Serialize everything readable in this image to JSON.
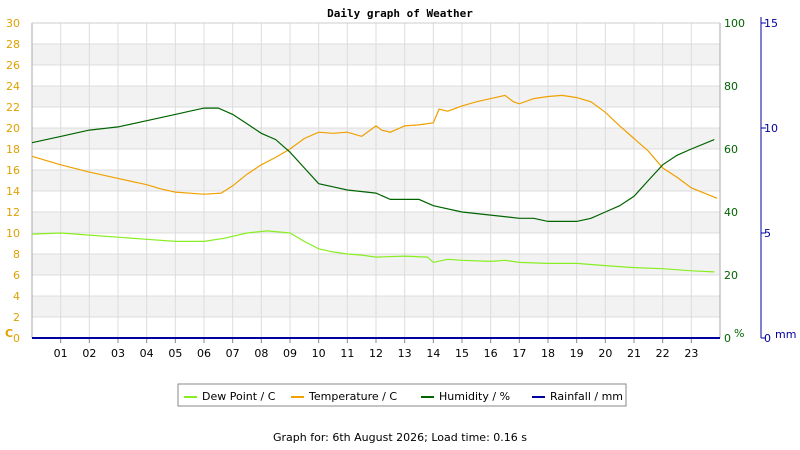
{
  "chart_data": {
    "type": "line",
    "title": "Daily graph of Weather",
    "footer": "Graph for: 6th August 2026; Load time: 0.16 s",
    "x_ticks": [
      "01",
      "02",
      "03",
      "04",
      "05",
      "06",
      "07",
      "08",
      "09",
      "10",
      "11",
      "12",
      "13",
      "14",
      "15",
      "16",
      "17",
      "18",
      "19",
      "20",
      "21",
      "22",
      "23"
    ],
    "xlim": [
      0,
      24
    ],
    "grid": true,
    "legend_position": "bottom",
    "axes": {
      "left": {
        "unit": "C",
        "ticks": [
          "0",
          "2",
          "4",
          "6",
          "8",
          "10",
          "12",
          "14",
          "16",
          "18",
          "20",
          "22",
          "24",
          "26",
          "28",
          "30"
        ],
        "min": 0,
        "max": 30,
        "color": "#e0a000"
      },
      "right1": {
        "unit": "%",
        "ticks": [
          "0",
          "20",
          "40",
          "60",
          "80",
          "100"
        ],
        "min": 0,
        "max": 100,
        "color": "#006400"
      },
      "right2": {
        "unit": "mm",
        "ticks": [
          "0",
          "5",
          "10",
          "15"
        ],
        "min": 0,
        "max": 15,
        "color": "#0000a0"
      }
    },
    "series": [
      {
        "name": "Dew Point / C",
        "axis": "left",
        "color": "#88ee22",
        "x": [
          0,
          1,
          2,
          3,
          4,
          5,
          6,
          6.7,
          7.5,
          8.2,
          9,
          9.5,
          10,
          10.5,
          11,
          11.5,
          12,
          13,
          13.8,
          14,
          14.5,
          15,
          16,
          16.5,
          17,
          18,
          19,
          20,
          21,
          22,
          23,
          23.8
        ],
        "y": [
          9.9,
          10,
          9.8,
          9.6,
          9.4,
          9.2,
          9.2,
          9.5,
          10,
          10.2,
          10,
          9.2,
          8.5,
          8.2,
          8,
          7.9,
          7.7,
          7.8,
          7.7,
          7.2,
          7.5,
          7.4,
          7.3,
          7.4,
          7.2,
          7.1,
          7.1,
          6.9,
          6.7,
          6.6,
          6.4,
          6.3
        ]
      },
      {
        "name": "Temperature / C",
        "axis": "left",
        "color": "#f0a000",
        "x": [
          0,
          1,
          2,
          3,
          4,
          4.5,
          5,
          6,
          6.6,
          7,
          7.5,
          8,
          8.5,
          9,
          9.5,
          10,
          10.5,
          11,
          11.5,
          12,
          12.2,
          12.5,
          13,
          13.5,
          14,
          14.2,
          14.5,
          15,
          15.5,
          16,
          16.5,
          16.8,
          17,
          17.5,
          18,
          18.5,
          19,
          19.5,
          20,
          20.5,
          21,
          21.5,
          22,
          22.5,
          23,
          23.9
        ],
        "y": [
          17.3,
          16.5,
          15.8,
          15.2,
          14.6,
          14.2,
          13.9,
          13.7,
          13.8,
          14.5,
          15.6,
          16.5,
          17.2,
          18,
          19,
          19.6,
          19.5,
          19.6,
          19.2,
          20.2,
          19.8,
          19.6,
          20.2,
          20.3,
          20.5,
          21.8,
          21.6,
          22.1,
          22.5,
          22.8,
          23.1,
          22.5,
          22.3,
          22.8,
          23,
          23.1,
          22.9,
          22.5,
          21.5,
          20.2,
          19,
          17.8,
          16.2,
          15.3,
          14.3,
          13.3
        ]
      },
      {
        "name": "Humidity / %",
        "axis": "right1",
        "color": "#006400",
        "x": [
          0,
          0.5,
          1,
          2,
          3,
          4,
          5,
          5.5,
          6,
          6.5,
          7,
          7.5,
          8,
          8.5,
          9,
          9.5,
          10,
          10.5,
          11,
          12,
          12.5,
          13,
          13.5,
          14,
          15,
          16,
          17,
          17.5,
          18,
          19,
          19.5,
          20,
          20.5,
          21,
          21.5,
          22,
          22.5,
          23,
          23.8
        ],
        "y": [
          62,
          63,
          64,
          66,
          67,
          69,
          71,
          72,
          73,
          73,
          71,
          68,
          65,
          63,
          59,
          54,
          49,
          48,
          47,
          46,
          44,
          44,
          44,
          42,
          40,
          39,
          38,
          38,
          37,
          37,
          38,
          40,
          42,
          45,
          50,
          55,
          58,
          60,
          63
        ]
      },
      {
        "name": "Rainfall / mm",
        "axis": "right2",
        "color": "#0000a0",
        "x": [
          0,
          24
        ],
        "y": [
          0,
          0
        ]
      }
    ]
  }
}
